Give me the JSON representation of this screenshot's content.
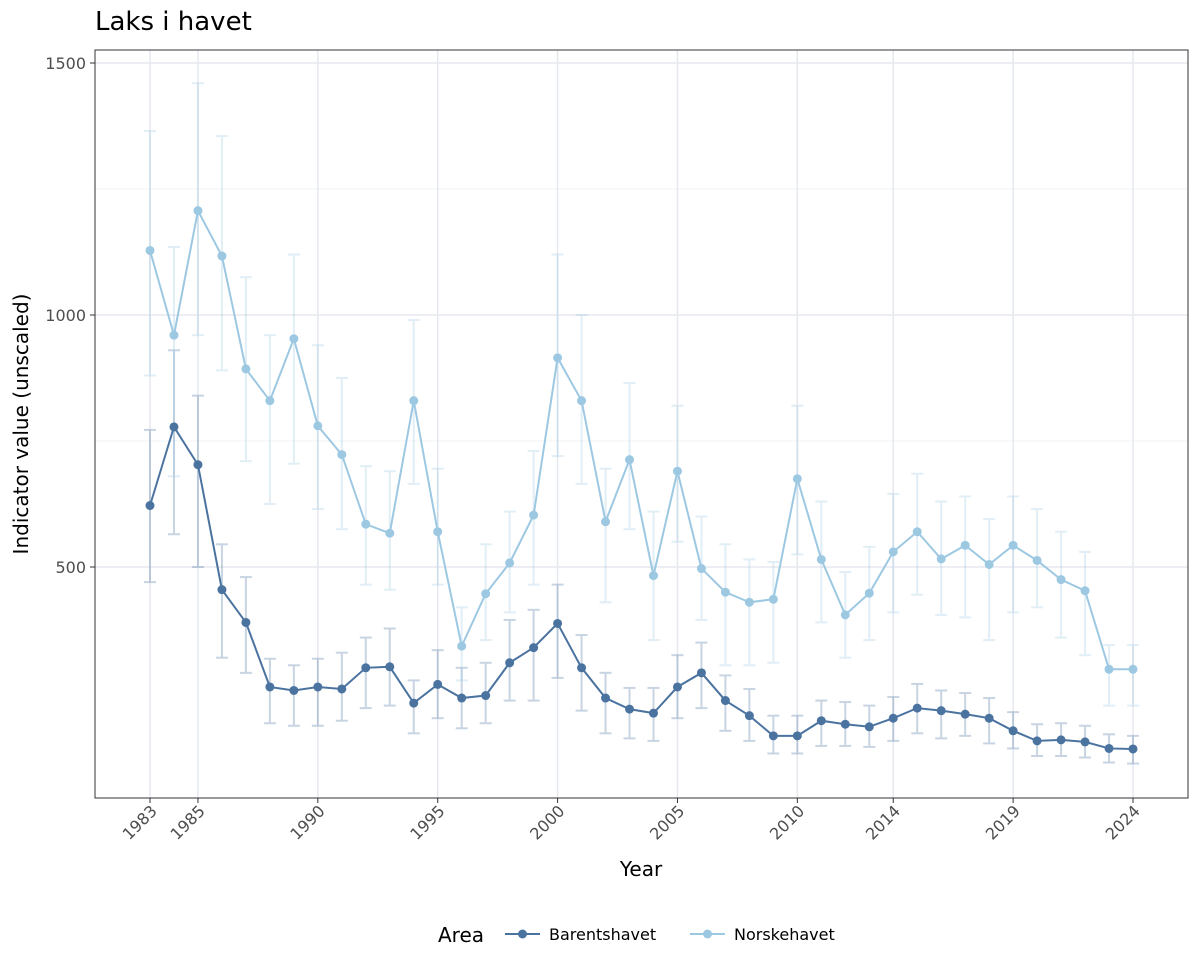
{
  "chart_data": {
    "type": "line",
    "title": "Laks i havet",
    "xlabel": "Year",
    "ylabel": "Indicator value (unscaled)",
    "xlim": [
      1983,
      2024
    ],
    "ylim": [
      0,
      1500
    ],
    "x_ticks": [
      1983,
      1985,
      1990,
      1995,
      2000,
      2005,
      2010,
      2014,
      2019,
      2024
    ],
    "y_ticks": [
      500,
      1000,
      1500
    ],
    "grid": true,
    "legend": {
      "title": "Area",
      "position": "bottom"
    },
    "x": [
      1983,
      1984,
      1985,
      1986,
      1987,
      1988,
      1989,
      1990,
      1991,
      1992,
      1993,
      1994,
      1995,
      1996,
      1997,
      1998,
      1999,
      2000,
      2001,
      2002,
      2003,
      2004,
      2005,
      2006,
      2007,
      2008,
      2009,
      2010,
      2011,
      2012,
      2013,
      2014,
      2015,
      2016,
      2017,
      2018,
      2019,
      2020,
      2021,
      2022,
      2023,
      2024
    ],
    "series": [
      {
        "name": "Barentshavet",
        "color": "#4b73a0",
        "values": [
          622,
          778,
          703,
          455,
          390,
          262,
          255,
          262,
          258,
          300,
          302,
          230,
          267,
          240,
          245,
          310,
          340,
          388,
          300,
          240,
          218,
          210,
          262,
          290,
          235,
          205,
          165,
          165,
          195,
          188,
          183,
          200,
          220,
          215,
          208,
          200,
          175,
          155,
          157,
          153,
          140,
          139
        ],
        "lower": [
          470,
          565,
          500,
          320,
          290,
          190,
          185,
          185,
          195,
          220,
          225,
          170,
          200,
          180,
          190,
          235,
          235,
          280,
          215,
          170,
          160,
          155,
          200,
          220,
          175,
          155,
          130,
          130,
          145,
          145,
          143,
          155,
          170,
          160,
          165,
          150,
          140,
          125,
          125,
          122,
          112,
          110
        ],
        "upper": [
          772,
          930,
          840,
          545,
          480,
          318,
          305,
          318,
          330,
          360,
          378,
          275,
          335,
          300,
          310,
          395,
          415,
          465,
          365,
          290,
          260,
          260,
          325,
          350,
          285,
          258,
          205,
          205,
          235,
          232,
          225,
          242,
          268,
          255,
          250,
          240,
          212,
          188,
          190,
          185,
          168,
          165
        ]
      },
      {
        "name": "Norskehavet",
        "color": "#9dc8e2",
        "values": [
          1128,
          960,
          1207,
          1117,
          893,
          830,
          953,
          780,
          723,
          585,
          567,
          830,
          570,
          343,
          447,
          508,
          603,
          915,
          830,
          590,
          713,
          483,
          690,
          497,
          450,
          430,
          436,
          675,
          515,
          405,
          448,
          530,
          570,
          516,
          543,
          505,
          543,
          513,
          475,
          453,
          297,
          297
        ],
        "lower": [
          880,
          680,
          960,
          890,
          710,
          625,
          705,
          615,
          575,
          465,
          455,
          665,
          465,
          275,
          355,
          410,
          465,
          720,
          665,
          430,
          575,
          355,
          550,
          395,
          305,
          305,
          310,
          525,
          390,
          320,
          355,
          410,
          445,
          405,
          400,
          355,
          410,
          420,
          360,
          325,
          225,
          225
        ],
        "upper": [
          1365,
          1135,
          1460,
          1355,
          1075,
          960,
          1120,
          940,
          875,
          700,
          690,
          990,
          695,
          420,
          545,
          610,
          730,
          1120,
          1000,
          695,
          865,
          610,
          820,
          600,
          545,
          515,
          510,
          820,
          630,
          490,
          540,
          645,
          685,
          630,
          640,
          595,
          640,
          615,
          570,
          530,
          345,
          345
        ]
      }
    ]
  }
}
